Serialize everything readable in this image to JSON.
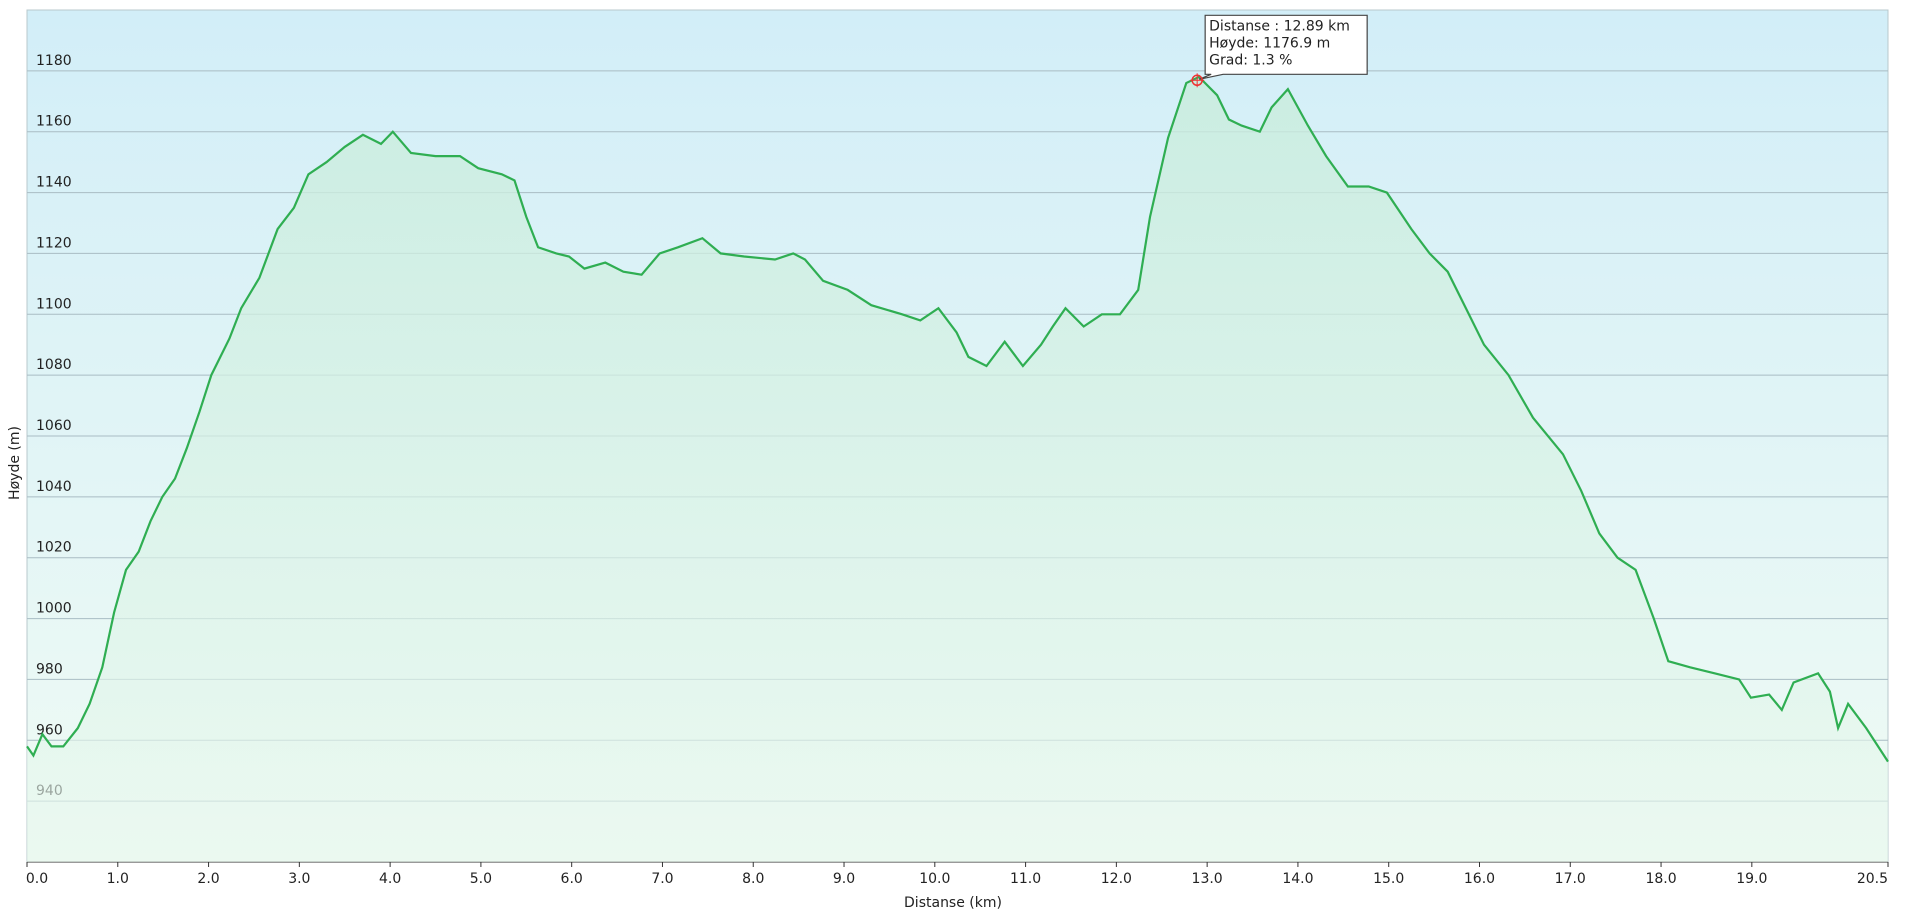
{
  "chart_data": {
    "type": "area",
    "x_label": "Distanse  (km)",
    "y_label": "Høyde (m)",
    "x": [
      0.0,
      0.07,
      0.17,
      0.27,
      0.4,
      0.56,
      0.69,
      0.83,
      0.96,
      1.09,
      1.23,
      1.36,
      1.49,
      1.63,
      1.76,
      1.9,
      2.03,
      2.23,
      2.36,
      2.56,
      2.76,
      2.94,
      3.1,
      3.3,
      3.5,
      3.7,
      3.9,
      4.03,
      4.23,
      4.5,
      4.77,
      4.97,
      5.23,
      5.37,
      5.5,
      5.63,
      5.83,
      5.97,
      6.14,
      6.37,
      6.57,
      6.77,
      6.97,
      7.17,
      7.44,
      7.64,
      7.9,
      8.24,
      8.44,
      8.57,
      8.77,
      9.04,
      9.3,
      9.64,
      9.84,
      10.04,
      10.24,
      10.37,
      10.57,
      10.77,
      10.97,
      11.17,
      11.3,
      11.44,
      11.64,
      11.84,
      12.04,
      12.24,
      12.37,
      12.57,
      12.77,
      12.91,
      13.11,
      13.24,
      13.38,
      13.58,
      13.71,
      13.89,
      14.11,
      14.31,
      14.55,
      14.78,
      14.98,
      15.25,
      15.45,
      15.65,
      15.85,
      16.05,
      16.32,
      16.59,
      16.92,
      17.12,
      17.32,
      17.52,
      17.72,
      17.92,
      18.08,
      18.32,
      18.59,
      18.86,
      18.99,
      19.19,
      19.33,
      19.46,
      19.73,
      19.86,
      19.95,
      20.06,
      20.26,
      20.5
    ],
    "series": [
      {
        "name": "Høyde",
        "color": "#2fae52",
        "values": [
          958,
          955,
          962,
          958,
          958,
          964,
          972,
          984,
          1002,
          1016,
          1022,
          1032,
          1040,
          1046,
          1056,
          1068,
          1080,
          1092,
          1102,
          1112,
          1128,
          1135,
          1146,
          1150,
          1155,
          1159,
          1156,
          1160,
          1153,
          1152,
          1152,
          1148,
          1146,
          1144,
          1132,
          1122,
          1120,
          1119,
          1115,
          1117,
          1114,
          1113,
          1120,
          1122,
          1125,
          1120,
          1119,
          1118,
          1120,
          1118,
          1111,
          1108,
          1103,
          1100,
          1098,
          1102,
          1094,
          1086,
          1083,
          1091,
          1083,
          1090,
          1096,
          1102,
          1096,
          1100,
          1100,
          1108,
          1132,
          1158,
          1176,
          1178,
          1172,
          1164,
          1162,
          1160,
          1168,
          1174,
          1162,
          1152,
          1142,
          1142,
          1140,
          1128,
          1120,
          1114,
          1102,
          1090,
          1080,
          1066,
          1054,
          1042,
          1028,
          1020,
          1016,
          1000,
          986,
          984,
          982,
          980,
          974,
          975,
          970,
          979,
          982,
          976,
          964,
          972,
          964,
          953
        ]
      }
    ],
    "xlim": [
      0,
      20.5
    ],
    "ylim": [
      920,
      1200
    ],
    "xticks": [
      {
        "value": 0,
        "label": "0.0"
      },
      {
        "value": 1,
        "label": "1.0"
      },
      {
        "value": 2,
        "label": "2.0"
      },
      {
        "value": 3,
        "label": "3.0"
      },
      {
        "value": 4,
        "label": "4.0"
      },
      {
        "value": 5,
        "label": "5.0"
      },
      {
        "value": 6,
        "label": "6.0"
      },
      {
        "value": 7,
        "label": "7.0"
      },
      {
        "value": 8,
        "label": "8.0"
      },
      {
        "value": 9,
        "label": "9.0"
      },
      {
        "value": 10,
        "label": "10.0"
      },
      {
        "value": 11,
        "label": "11.0"
      },
      {
        "value": 12,
        "label": "12.0"
      },
      {
        "value": 13,
        "label": "13.0"
      },
      {
        "value": 14,
        "label": "14.0"
      },
      {
        "value": 15,
        "label": "15.0"
      },
      {
        "value": 16,
        "label": "16.0"
      },
      {
        "value": 17,
        "label": "17.0"
      },
      {
        "value": 18,
        "label": "18.0"
      },
      {
        "value": 19,
        "label": "19.0"
      },
      20.5
    ],
    "yticks": [
      940,
      960,
      980,
      1000,
      1020,
      1040,
      1060,
      1080,
      1100,
      1120,
      1140,
      1160,
      1180
    ],
    "grid": true,
    "tooltip": {
      "x": 12.89,
      "y": 1176.9,
      "lines": [
        "Distanse : 12.89 km",
        "Høyde: 1176.9 m",
        "Grad: 1.3 %"
      ]
    }
  }
}
